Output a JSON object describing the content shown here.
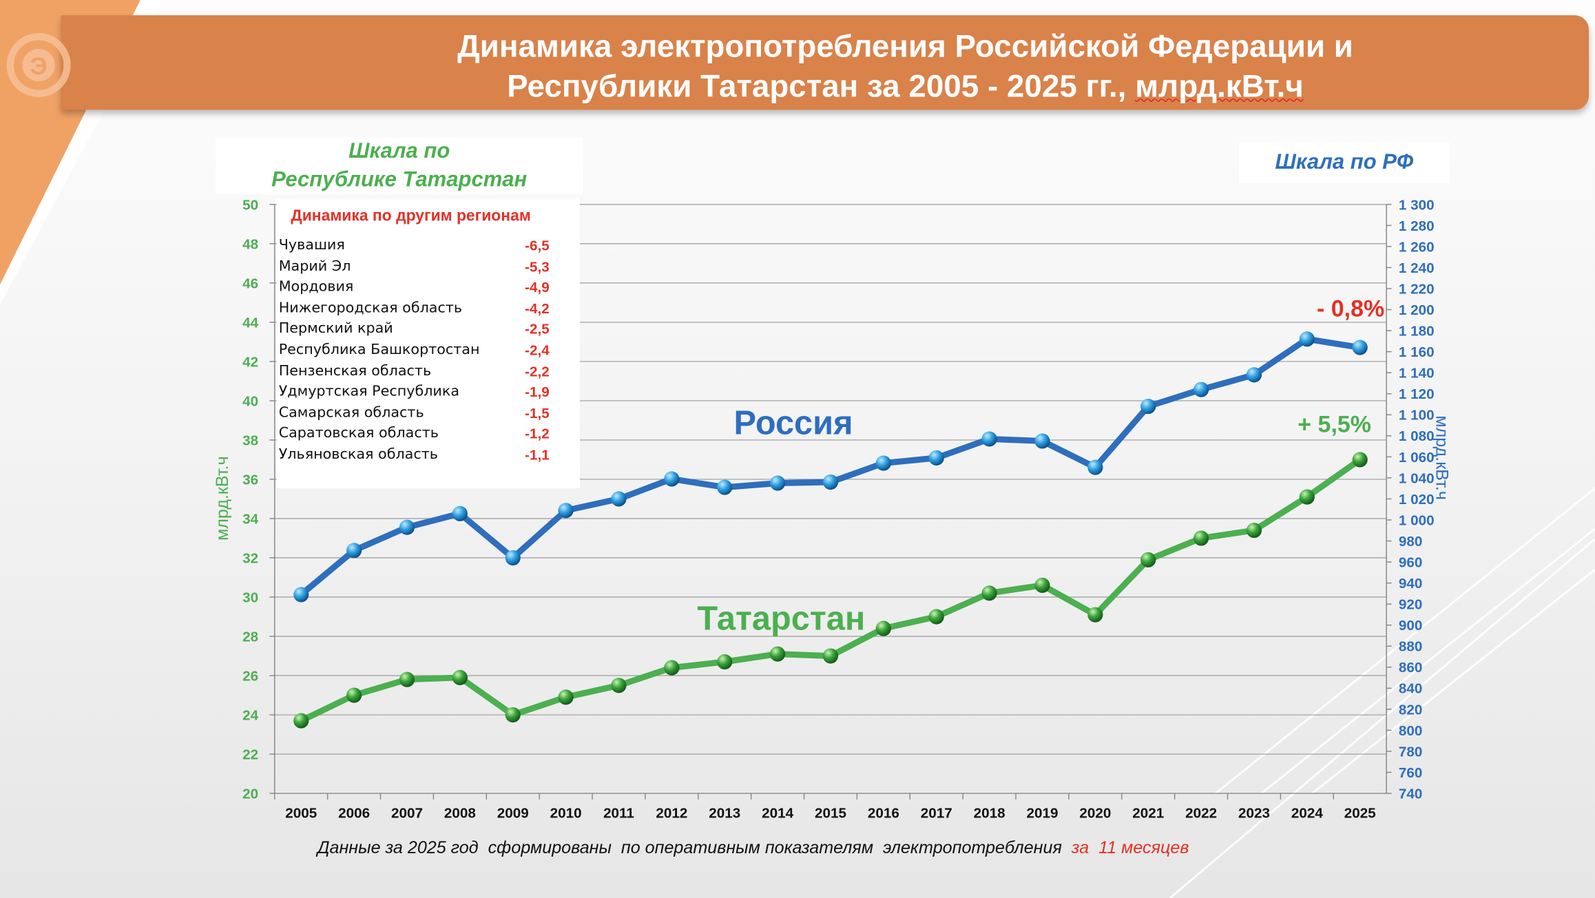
{
  "title": {
    "line1": "Динамика электропотребления Российской Федерации и",
    "line2a": "Республики Татарстан за 2005 - 2025 гг., ",
    "line2b": "млрд.кВт.ч"
  },
  "logo_letter": "Э",
  "scale_rt": {
    "line1": "Шкала по",
    "line2": "Республике Татарстан"
  },
  "scale_rf": "Шкала по РФ",
  "regions": {
    "title": "Динамика по другим регионам",
    "items": [
      {
        "name": "Чувашия",
        "value": "-6,5"
      },
      {
        "name": "Марий Эл",
        "value": "-5,3"
      },
      {
        "name": "Мордовия",
        "value": "-4,9"
      },
      {
        "name": "Нижегородская область",
        "value": "-4,2"
      },
      {
        "name": "Пермский край",
        "value": "-2,5"
      },
      {
        "name": "Республика Башкортостан",
        "value": "-2,4"
      },
      {
        "name": "Пензенская область",
        "value": "-2,2"
      },
      {
        "name": "Удмуртская Республика",
        "value": "-1,9"
      },
      {
        "name": "Самарская область",
        "value": "-1,5"
      },
      {
        "name": "Саратовская область",
        "value": "-1,2"
      },
      {
        "name": "Ульяновская область",
        "value": "-1,1"
      }
    ]
  },
  "footer": {
    "main": "Данные за 2025 год  сформированы  по оперативным показателям  электропотребления  ",
    "red": "за  11 месяцев"
  },
  "colors": {
    "russia": "#2e6ebd",
    "tatarstan": "#4caf50",
    "negative": "#e53026",
    "banner": "#d9824a"
  },
  "chart_data": {
    "type": "line",
    "title": "Динамика электропотребления Российской Федерации и Республики Татарстан за 2005 - 2025 гг., млрд.кВт.ч",
    "categories": [
      "2005",
      "2006",
      "2007",
      "2008",
      "2009",
      "2010",
      "2011",
      "2012",
      "2013",
      "2014",
      "2015",
      "2016",
      "2017",
      "2018",
      "2019",
      "2020",
      "2021",
      "2022",
      "2023",
      "2024",
      "2025"
    ],
    "ylabel_left": "млрд.кВт.ч",
    "ylabel_right": "млрд.кВт.ч",
    "ylim_left": [
      20,
      50
    ],
    "ylim_right": [
      740,
      1300
    ],
    "yticks_left": [
      "20",
      "22",
      "24",
      "26",
      "28",
      "30",
      "32",
      "34",
      "36",
      "38",
      "40",
      "42",
      "44",
      "46",
      "48",
      "50"
    ],
    "yticks_right": [
      "740",
      "760",
      "780",
      "800",
      "820",
      "840",
      "860",
      "880",
      "900",
      "920",
      "940",
      "960",
      "980",
      "1 000",
      "1 020",
      "1 040",
      "1 060",
      "1 080",
      "1 100",
      "1 120",
      "1 140",
      "1 160",
      "1 180",
      "1 200",
      "1 220",
      "1 240",
      "1 260",
      "1 280",
      "1 300"
    ],
    "grid": true,
    "series": [
      {
        "name": "Россия",
        "axis": "right",
        "values": [
          929,
          971,
          993,
          1006,
          964,
          1009,
          1020,
          1039,
          1031,
          1035,
          1036,
          1054,
          1059,
          1077,
          1075,
          1050,
          1108,
          1124,
          1138,
          1172,
          1164
        ],
        "annotation": "- 0,8%"
      },
      {
        "name": "Татарстан",
        "axis": "left",
        "values": [
          23.7,
          25.0,
          25.8,
          25.9,
          24.0,
          24.9,
          25.5,
          26.4,
          26.7,
          27.1,
          27.0,
          28.4,
          29.0,
          30.2,
          30.6,
          29.1,
          31.9,
          33.0,
          33.4,
          35.1,
          37.0
        ],
        "annotation": "+ 5,5%"
      }
    ]
  }
}
